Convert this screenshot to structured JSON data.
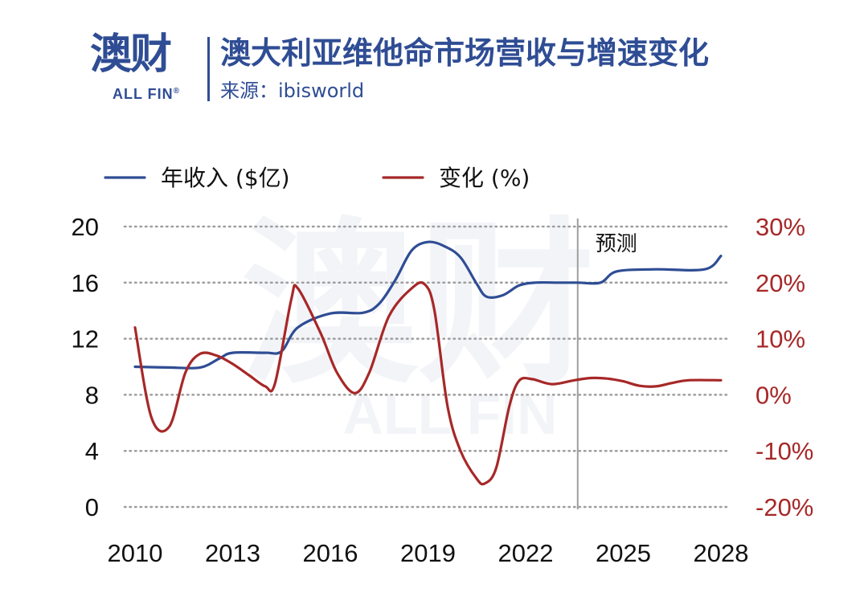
{
  "header": {
    "logo_cn": "澳财",
    "logo_en": "ALL FIN",
    "logo_reg": "®",
    "title": "澳大利亚维他命市场营收与增速变化",
    "source": "来源：ibisworld"
  },
  "watermark": {
    "cn": "澳财",
    "en": "ALL FIN"
  },
  "colors": {
    "revenue": "#2f4d94",
    "change": "#a72828",
    "brand": "#2f4d94",
    "grid": "#9e9e9e",
    "forecast_line": "#9e9e9e"
  },
  "chart_data": {
    "type": "line",
    "x_ticks": [
      "2010",
      "2013",
      "2016",
      "2019",
      "2022",
      "2025",
      "2028"
    ],
    "xlim": [
      2009.85,
      2028.1
    ],
    "forecast_start": 2023.6,
    "forecast_label": "预测",
    "left_axis": {
      "ticks": [
        "20",
        "16",
        "12",
        "8",
        "4",
        "0"
      ],
      "ylim": [
        0,
        20
      ]
    },
    "right_axis": {
      "ticks": [
        "30%",
        "20%",
        "10%",
        "0%",
        "-10%",
        "-20%"
      ],
      "ylim": [
        -20,
        30
      ]
    },
    "grid": "dotted horizontal",
    "legend": {
      "position": "top-left"
    },
    "series": [
      {
        "name": "年收入 ($亿)",
        "axis": "left",
        "points": [
          [
            2010,
            10.0
          ],
          [
            2011,
            9.95
          ],
          [
            2012,
            9.95
          ],
          [
            2012.6,
            10.6
          ],
          [
            2013,
            11.0
          ],
          [
            2014,
            11.0
          ],
          [
            2014.5,
            11.1
          ],
          [
            2015,
            12.8
          ],
          [
            2016,
            13.8
          ],
          [
            2017,
            13.85
          ],
          [
            2017.5,
            14.5
          ],
          [
            2018,
            16.2
          ],
          [
            2018.5,
            18.3
          ],
          [
            2019,
            18.9
          ],
          [
            2019.5,
            18.6
          ],
          [
            2020,
            17.8
          ],
          [
            2020.5,
            15.9
          ],
          [
            2020.8,
            15.0
          ],
          [
            2021.3,
            15.1
          ],
          [
            2021.8,
            15.8
          ],
          [
            2022.3,
            16.0
          ],
          [
            2023,
            16.0
          ],
          [
            2023.6,
            16.0
          ],
          [
            2024.3,
            16.0
          ],
          [
            2024.8,
            16.8
          ],
          [
            2026,
            16.95
          ],
          [
            2027.5,
            16.95
          ],
          [
            2028,
            17.9
          ]
        ]
      },
      {
        "name": "变化 (%)",
        "axis": "right",
        "points": [
          [
            2010,
            12.0
          ],
          [
            2010.5,
            -4.0
          ],
          [
            2011.05,
            -5.7
          ],
          [
            2011.55,
            4.0
          ],
          [
            2012,
            7.3
          ],
          [
            2012.5,
            7.0
          ],
          [
            2013,
            5.5
          ],
          [
            2013.5,
            3.5
          ],
          [
            2014,
            1.5
          ],
          [
            2014.3,
            2.0
          ],
          [
            2014.8,
            17.0
          ],
          [
            2015,
            19.0
          ],
          [
            2015.7,
            11.0
          ],
          [
            2016.2,
            4.0
          ],
          [
            2016.75,
            0.3
          ],
          [
            2017.2,
            4.0
          ],
          [
            2017.8,
            14.0
          ],
          [
            2018.5,
            19.0
          ],
          [
            2018.9,
            19.7
          ],
          [
            2019.2,
            15.0
          ],
          [
            2019.6,
            -2.0
          ],
          [
            2020,
            -10.0
          ],
          [
            2020.5,
            -15.0
          ],
          [
            2020.75,
            -15.8
          ],
          [
            2021.1,
            -13.0
          ],
          [
            2021.5,
            -2.0
          ],
          [
            2021.8,
            2.5
          ],
          [
            2022.2,
            2.8
          ],
          [
            2022.8,
            1.9
          ],
          [
            2023.5,
            2.6
          ],
          [
            2024,
            3.0
          ],
          [
            2024.5,
            2.9
          ],
          [
            2025,
            2.4
          ],
          [
            2025.5,
            1.6
          ],
          [
            2026,
            1.5
          ],
          [
            2026.5,
            2.1
          ],
          [
            2027,
            2.6
          ],
          [
            2028,
            2.6
          ]
        ]
      }
    ]
  }
}
